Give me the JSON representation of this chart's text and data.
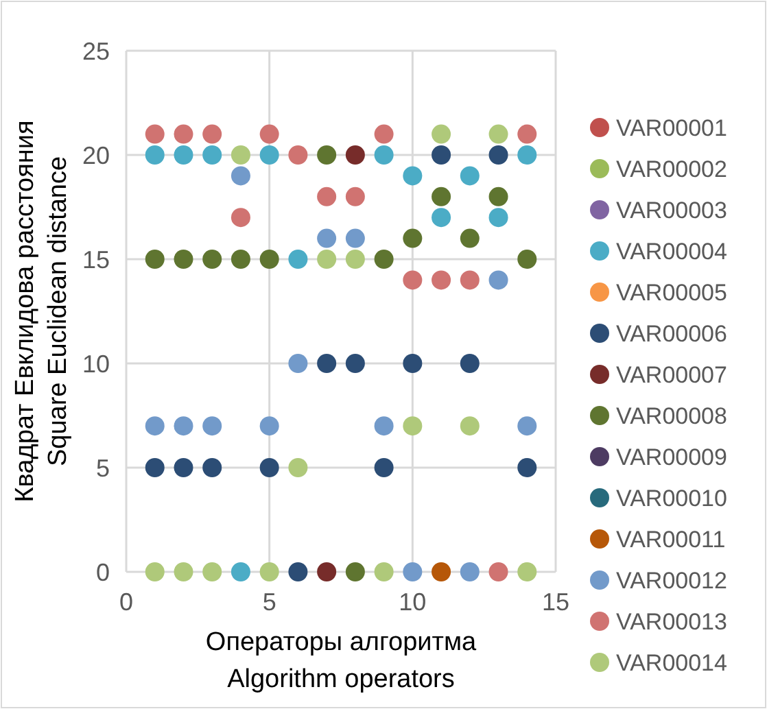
{
  "chart_data": {
    "type": "scatter",
    "xlabel": "Операторы алгоритма\nAlgorithm operators",
    "ylabel": "Квадрат Евклидова расстояния\nSquare Euclidean distance",
    "xlim": [
      0,
      15
    ],
    "xticks": [
      0,
      5,
      10,
      15
    ],
    "ylim": [
      0,
      25
    ],
    "yticks": [
      0,
      5,
      10,
      15,
      20,
      25
    ],
    "grid": true,
    "legend": "right",
    "marker": "circle",
    "series": [
      {
        "name": "VAR00001",
        "color": "#c0504d"
      },
      {
        "name": "VAR00002",
        "color": "#9bbb59"
      },
      {
        "name": "VAR00003",
        "color": "#8064a2"
      },
      {
        "name": "VAR00004",
        "color": "#4bacc6",
        "x": [
          1,
          2,
          3,
          5,
          9,
          14,
          10,
          12,
          11,
          13,
          6,
          4
        ],
        "values": [
          20,
          20,
          20,
          20,
          20,
          20,
          19,
          19,
          17,
          17,
          15,
          0
        ]
      },
      {
        "name": "VAR00005",
        "color": "#f79646"
      },
      {
        "name": "VAR00006",
        "color": "#2c4d75",
        "x": [
          11,
          13,
          7,
          8,
          10,
          12,
          1,
          2,
          3,
          5,
          9,
          14,
          6
        ],
        "values": [
          20,
          20,
          10,
          10,
          10,
          10,
          5,
          5,
          5,
          5,
          5,
          5,
          0
        ]
      },
      {
        "name": "VAR00007",
        "color": "#772c2a",
        "x": [
          8,
          7
        ],
        "values": [
          20,
          0
        ]
      },
      {
        "name": "VAR00008",
        "color": "#5f7530",
        "x": [
          7,
          11,
          13,
          10,
          12,
          1,
          2,
          3,
          4,
          5,
          9,
          14,
          8
        ],
        "values": [
          20,
          18,
          18,
          16,
          16,
          15,
          15,
          15,
          15,
          15,
          15,
          15,
          0
        ]
      },
      {
        "name": "VAR00009",
        "color": "#4d3b62"
      },
      {
        "name": "VAR00010",
        "color": "#276a7c"
      },
      {
        "name": "VAR00011",
        "color": "#b65708",
        "x": [
          11
        ],
        "values": [
          0
        ]
      },
      {
        "name": "VAR00012",
        "color": "#729aca",
        "x": [
          4,
          7,
          8,
          13,
          6,
          1,
          2,
          3,
          5,
          9,
          14,
          10,
          12
        ],
        "values": [
          19,
          16,
          16,
          14,
          10,
          7,
          7,
          7,
          7,
          7,
          7,
          0,
          0
        ]
      },
      {
        "name": "VAR00013",
        "color": "#d07371",
        "x": [
          1,
          2,
          3,
          5,
          9,
          14,
          6,
          7,
          8,
          4,
          10,
          11,
          12,
          13
        ],
        "values": [
          21,
          21,
          21,
          21,
          21,
          21,
          20,
          18,
          18,
          17,
          14,
          14,
          14,
          0
        ]
      },
      {
        "name": "VAR00014",
        "color": "#afc97a",
        "x": [
          11,
          13,
          4,
          7,
          8,
          10,
          12,
          6,
          1,
          2,
          3,
          5,
          9,
          14
        ],
        "values": [
          21,
          21,
          20,
          15,
          15,
          7,
          7,
          5,
          0,
          0,
          0,
          0,
          0,
          0
        ]
      }
    ]
  }
}
